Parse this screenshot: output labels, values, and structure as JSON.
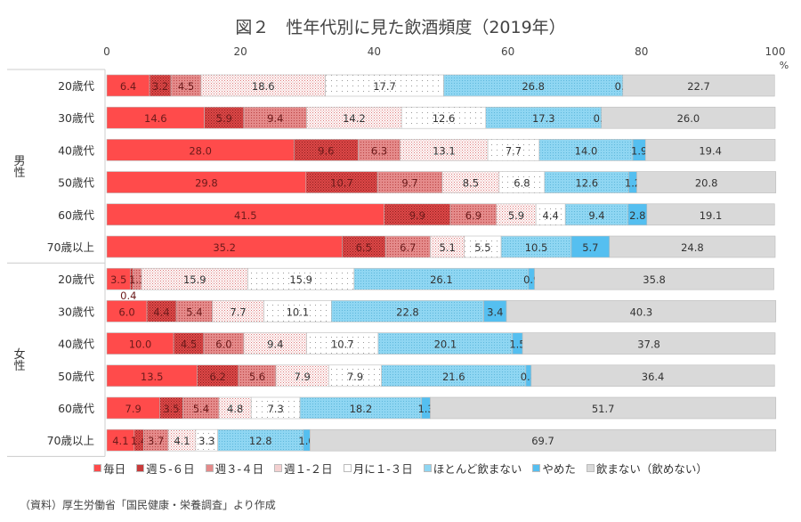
{
  "chart_data": {
    "type": "bar",
    "orientation": "horizontal-stacked-100",
    "title": "図２　性年代別に見た飲酒頻度（2019年）",
    "unit": "%",
    "xlim": [
      0,
      100
    ],
    "xticks": [
      0,
      20,
      40,
      60,
      80,
      100
    ],
    "groups": [
      {
        "name": "男性",
        "rows": [
          "20歳代",
          "30歳代",
          "40歳代",
          "50歳代",
          "60歳代",
          "70歳以上"
        ]
      },
      {
        "name": "女性",
        "rows": [
          "20歳代",
          "30歳代",
          "40歳代",
          "50歳代",
          "60歳代",
          "70歳以上"
        ]
      }
    ],
    "series": [
      {
        "name": "毎日",
        "color": "#ff4b4b",
        "values": [
          6.4,
          14.6,
          28.0,
          29.8,
          41.5,
          35.2,
          3.5,
          6.0,
          10.0,
          13.5,
          7.9,
          4.1
        ]
      },
      {
        "name": "週５-６日",
        "color": "#c83a3a",
        "values": [
          3.2,
          5.9,
          9.6,
          10.7,
          9.9,
          6.5,
          0.4,
          4.4,
          4.5,
          6.2,
          3.5,
          1.4
        ]
      },
      {
        "name": "週３-４日",
        "color": "#d97a7a",
        "values": [
          4.5,
          9.4,
          6.3,
          9.7,
          6.9,
          6.7,
          1.3,
          5.4,
          6.0,
          5.6,
          5.4,
          3.7
        ]
      },
      {
        "name": "週１-２日",
        "color": "#e8b0b0",
        "values": [
          18.6,
          14.2,
          13.1,
          8.5,
          5.9,
          5.1,
          15.9,
          7.7,
          9.4,
          7.9,
          4.8,
          4.1
        ]
      },
      {
        "name": "月に１-３日",
        "color": "#ffffff",
        "values": [
          17.7,
          12.6,
          7.7,
          6.8,
          4.4,
          5.5,
          15.9,
          10.1,
          10.7,
          7.9,
          7.3,
          3.3
        ]
      },
      {
        "name": "ほとんど飲まない",
        "color": "#8fd6f2",
        "values": [
          26.8,
          17.3,
          14.0,
          12.6,
          9.4,
          10.5,
          26.1,
          22.8,
          20.1,
          21.6,
          18.2,
          12.8
        ]
      },
      {
        "name": "やめた",
        "color": "#55bff0",
        "values": [
          0.0,
          0.0,
          1.9,
          1.2,
          2.8,
          5.7,
          0.9,
          3.4,
          1.5,
          0.8,
          1.3,
          1.0
        ]
      },
      {
        "name": "飲まない（飲めない）",
        "color": "#d9d9d9",
        "values": [
          22.7,
          26.0,
          19.4,
          20.8,
          19.1,
          24.8,
          35.8,
          40.3,
          37.8,
          36.4,
          51.7,
          69.7
        ]
      }
    ],
    "legend_position": "bottom"
  },
  "footnote": "（資料）厚生労働省「国民健康・栄養調査」より作成"
}
